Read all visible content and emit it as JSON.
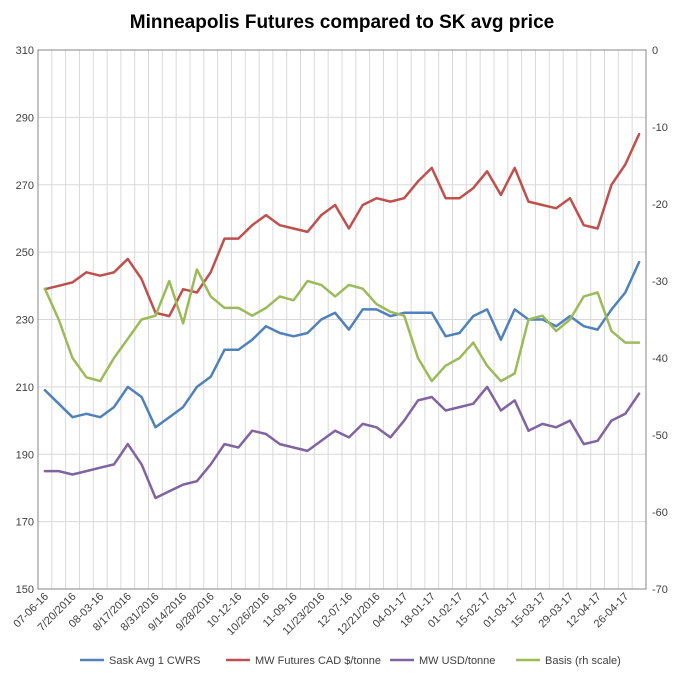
{
  "chart_data": {
    "type": "line",
    "title": "Minneapolis Futures compared to SK avg price",
    "y_left": {
      "min": 150,
      "max": 310,
      "ticks": [
        "150",
        "170",
        "190",
        "210",
        "230",
        "250",
        "270",
        "290",
        "310"
      ]
    },
    "y_right": {
      "min": -70,
      "max": 0,
      "ticks": [
        "0",
        "-10",
        "-20",
        "-30",
        "-40",
        "-50",
        "-60",
        "-70"
      ]
    },
    "x_tick_labels": [
      "07-06-16",
      "7/20/2016",
      "08-03-16",
      "8/17/2016",
      "8/31/2016",
      "9/14/2016",
      "9/28/2016",
      "10-12-16",
      "10/26/2016",
      "11-09-16",
      "11/23/2016",
      "12-07-16",
      "12/21/2016",
      "04-01-17",
      "18-01-17",
      "01-02-17",
      "15-02-17",
      "01-03-17",
      "15-03-17",
      "29-03-17",
      "12-04-17",
      "26-04-17"
    ],
    "series": [
      {
        "name": "Sask Avg 1 CWRS",
        "axis": "left",
        "color": "#4f81bd",
        "values": [
          209,
          205,
          201,
          202,
          201,
          204,
          210,
          207,
          198,
          201,
          204,
          210,
          213,
          221,
          221,
          224,
          228,
          226,
          225,
          226,
          230,
          232,
          227,
          233,
          233,
          231,
          232,
          232,
          232,
          225,
          226,
          231,
          233,
          224,
          233,
          230,
          230,
          228,
          231,
          228,
          227,
          233,
          238,
          247
        ]
      },
      {
        "name": "MW Futures CAD $/tonne",
        "axis": "left",
        "color": "#c0504d",
        "values": [
          239,
          240,
          241,
          244,
          243,
          244,
          248,
          242,
          232,
          231,
          239,
          238,
          244,
          254,
          254,
          258,
          261,
          258,
          257,
          256,
          261,
          264,
          257,
          264,
          266,
          265,
          266,
          271,
          275,
          266,
          266,
          269,
          274,
          267,
          275,
          265,
          264,
          263,
          266,
          258,
          257,
          270,
          276,
          285
        ]
      },
      {
        "name": "MW USD/tonne",
        "axis": "left",
        "color": "#8064a2",
        "values": [
          185,
          185,
          184,
          185,
          186,
          187,
          193,
          187,
          177,
          179,
          181,
          182,
          187,
          193,
          192,
          197,
          196,
          193,
          192,
          191,
          194,
          197,
          195,
          199,
          198,
          195,
          200,
          206,
          207,
          203,
          204,
          205,
          210,
          203,
          206,
          197,
          199,
          198,
          200,
          193,
          194,
          200,
          202,
          208
        ]
      },
      {
        "name": "Basis (rh scale)",
        "axis": "right",
        "color": "#9bbb59",
        "values": [
          -31,
          -35,
          -40,
          -42.5,
          -43,
          -40,
          -37.5,
          -35,
          -34.5,
          -30,
          -35.5,
          -28.5,
          -32,
          -33.5,
          -33.5,
          -34.5,
          -33.5,
          -32,
          -32.5,
          -30,
          -30.5,
          -32,
          -30.5,
          -31,
          -33,
          -34,
          -34.5,
          -40,
          -43,
          -41,
          -40,
          -38,
          -41,
          -43,
          -42,
          -35,
          -34.5,
          -36.5,
          -35,
          -32,
          -31.5,
          -36.5,
          -38,
          -38
        ]
      }
    ]
  }
}
